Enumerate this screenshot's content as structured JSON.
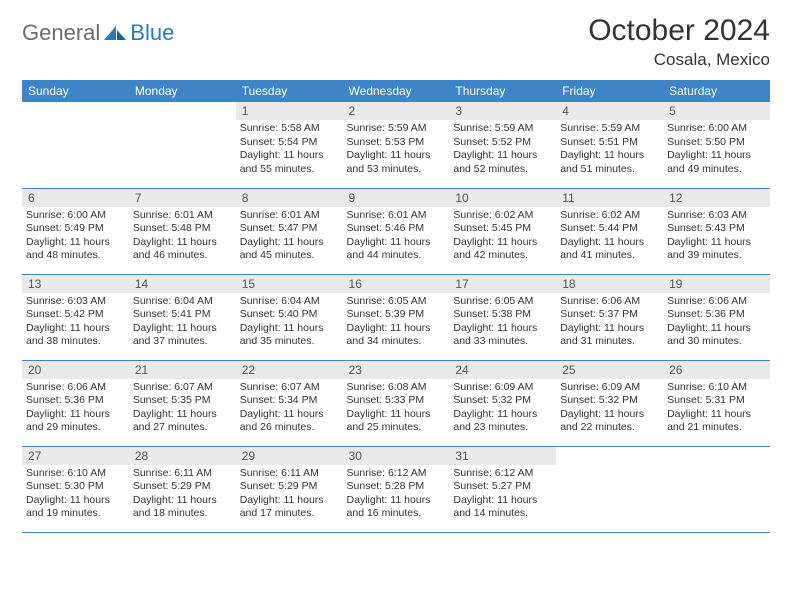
{
  "logo": {
    "text1": "General",
    "text2": "Blue"
  },
  "title": "October 2024",
  "subtitle": "Cosala, Mexico",
  "colors": {
    "header_bg": "#3d85c6",
    "header_fg": "#ffffff",
    "daynum_bg": "#e9e9e9",
    "border": "#3d85c6",
    "logo_gray": "#6b6b6b",
    "logo_blue": "#2b78c2",
    "text": "#333333",
    "page_bg": "#ffffff"
  },
  "weekdays": [
    "Sunday",
    "Monday",
    "Tuesday",
    "Wednesday",
    "Thursday",
    "Friday",
    "Saturday"
  ],
  "weeks": [
    [
      {
        "n": "",
        "sr": "",
        "ss": "",
        "dl": ""
      },
      {
        "n": "",
        "sr": "",
        "ss": "",
        "dl": ""
      },
      {
        "n": "1",
        "sr": "Sunrise: 5:58 AM",
        "ss": "Sunset: 5:54 PM",
        "dl": "Daylight: 11 hours and 55 minutes."
      },
      {
        "n": "2",
        "sr": "Sunrise: 5:59 AM",
        "ss": "Sunset: 5:53 PM",
        "dl": "Daylight: 11 hours and 53 minutes."
      },
      {
        "n": "3",
        "sr": "Sunrise: 5:59 AM",
        "ss": "Sunset: 5:52 PM",
        "dl": "Daylight: 11 hours and 52 minutes."
      },
      {
        "n": "4",
        "sr": "Sunrise: 5:59 AM",
        "ss": "Sunset: 5:51 PM",
        "dl": "Daylight: 11 hours and 51 minutes."
      },
      {
        "n": "5",
        "sr": "Sunrise: 6:00 AM",
        "ss": "Sunset: 5:50 PM",
        "dl": "Daylight: 11 hours and 49 minutes."
      }
    ],
    [
      {
        "n": "6",
        "sr": "Sunrise: 6:00 AM",
        "ss": "Sunset: 5:49 PM",
        "dl": "Daylight: 11 hours and 48 minutes."
      },
      {
        "n": "7",
        "sr": "Sunrise: 6:01 AM",
        "ss": "Sunset: 5:48 PM",
        "dl": "Daylight: 11 hours and 46 minutes."
      },
      {
        "n": "8",
        "sr": "Sunrise: 6:01 AM",
        "ss": "Sunset: 5:47 PM",
        "dl": "Daylight: 11 hours and 45 minutes."
      },
      {
        "n": "9",
        "sr": "Sunrise: 6:01 AM",
        "ss": "Sunset: 5:46 PM",
        "dl": "Daylight: 11 hours and 44 minutes."
      },
      {
        "n": "10",
        "sr": "Sunrise: 6:02 AM",
        "ss": "Sunset: 5:45 PM",
        "dl": "Daylight: 11 hours and 42 minutes."
      },
      {
        "n": "11",
        "sr": "Sunrise: 6:02 AM",
        "ss": "Sunset: 5:44 PM",
        "dl": "Daylight: 11 hours and 41 minutes."
      },
      {
        "n": "12",
        "sr": "Sunrise: 6:03 AM",
        "ss": "Sunset: 5:43 PM",
        "dl": "Daylight: 11 hours and 39 minutes."
      }
    ],
    [
      {
        "n": "13",
        "sr": "Sunrise: 6:03 AM",
        "ss": "Sunset: 5:42 PM",
        "dl": "Daylight: 11 hours and 38 minutes."
      },
      {
        "n": "14",
        "sr": "Sunrise: 6:04 AM",
        "ss": "Sunset: 5:41 PM",
        "dl": "Daylight: 11 hours and 37 minutes."
      },
      {
        "n": "15",
        "sr": "Sunrise: 6:04 AM",
        "ss": "Sunset: 5:40 PM",
        "dl": "Daylight: 11 hours and 35 minutes."
      },
      {
        "n": "16",
        "sr": "Sunrise: 6:05 AM",
        "ss": "Sunset: 5:39 PM",
        "dl": "Daylight: 11 hours and 34 minutes."
      },
      {
        "n": "17",
        "sr": "Sunrise: 6:05 AM",
        "ss": "Sunset: 5:38 PM",
        "dl": "Daylight: 11 hours and 33 minutes."
      },
      {
        "n": "18",
        "sr": "Sunrise: 6:06 AM",
        "ss": "Sunset: 5:37 PM",
        "dl": "Daylight: 11 hours and 31 minutes."
      },
      {
        "n": "19",
        "sr": "Sunrise: 6:06 AM",
        "ss": "Sunset: 5:36 PM",
        "dl": "Daylight: 11 hours and 30 minutes."
      }
    ],
    [
      {
        "n": "20",
        "sr": "Sunrise: 6:06 AM",
        "ss": "Sunset: 5:36 PM",
        "dl": "Daylight: 11 hours and 29 minutes."
      },
      {
        "n": "21",
        "sr": "Sunrise: 6:07 AM",
        "ss": "Sunset: 5:35 PM",
        "dl": "Daylight: 11 hours and 27 minutes."
      },
      {
        "n": "22",
        "sr": "Sunrise: 6:07 AM",
        "ss": "Sunset: 5:34 PM",
        "dl": "Daylight: 11 hours and 26 minutes."
      },
      {
        "n": "23",
        "sr": "Sunrise: 6:08 AM",
        "ss": "Sunset: 5:33 PM",
        "dl": "Daylight: 11 hours and 25 minutes."
      },
      {
        "n": "24",
        "sr": "Sunrise: 6:09 AM",
        "ss": "Sunset: 5:32 PM",
        "dl": "Daylight: 11 hours and 23 minutes."
      },
      {
        "n": "25",
        "sr": "Sunrise: 6:09 AM",
        "ss": "Sunset: 5:32 PM",
        "dl": "Daylight: 11 hours and 22 minutes."
      },
      {
        "n": "26",
        "sr": "Sunrise: 6:10 AM",
        "ss": "Sunset: 5:31 PM",
        "dl": "Daylight: 11 hours and 21 minutes."
      }
    ],
    [
      {
        "n": "27",
        "sr": "Sunrise: 6:10 AM",
        "ss": "Sunset: 5:30 PM",
        "dl": "Daylight: 11 hours and 19 minutes."
      },
      {
        "n": "28",
        "sr": "Sunrise: 6:11 AM",
        "ss": "Sunset: 5:29 PM",
        "dl": "Daylight: 11 hours and 18 minutes."
      },
      {
        "n": "29",
        "sr": "Sunrise: 6:11 AM",
        "ss": "Sunset: 5:29 PM",
        "dl": "Daylight: 11 hours and 17 minutes."
      },
      {
        "n": "30",
        "sr": "Sunrise: 6:12 AM",
        "ss": "Sunset: 5:28 PM",
        "dl": "Daylight: 11 hours and 16 minutes."
      },
      {
        "n": "31",
        "sr": "Sunrise: 6:12 AM",
        "ss": "Sunset: 5:27 PM",
        "dl": "Daylight: 11 hours and 14 minutes."
      },
      {
        "n": "",
        "sr": "",
        "ss": "",
        "dl": ""
      },
      {
        "n": "",
        "sr": "",
        "ss": "",
        "dl": ""
      }
    ]
  ]
}
